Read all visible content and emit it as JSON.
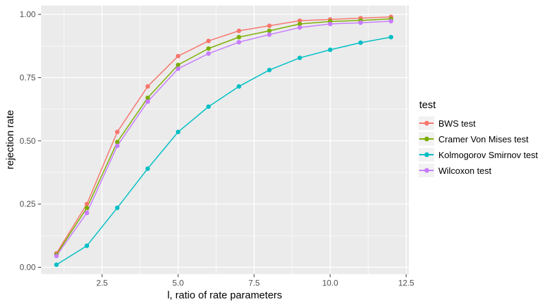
{
  "chart_data": {
    "type": "line",
    "title": "",
    "xlabel": "l, ratio of rate parameters",
    "ylabel": "rejection rate",
    "x": [
      1,
      2,
      3,
      4,
      5,
      6,
      7,
      8,
      9,
      10,
      11,
      12
    ],
    "xlim": [
      0.5,
      12.6
    ],
    "ylim": [
      -0.03,
      1.03
    ],
    "xticks": {
      "values": [
        2.5,
        5.0,
        7.5,
        10.0,
        12.5
      ],
      "labels": [
        "2.5",
        "5.0",
        "7.5",
        "10.0",
        "12.5"
      ]
    },
    "yticks": {
      "values": [
        0.0,
        0.25,
        0.5,
        0.75,
        1.0
      ],
      "labels": [
        "0.00",
        "0.25",
        "0.50",
        "0.75",
        "1.00"
      ]
    },
    "minor_xticks": [
      1.25,
      3.75,
      6.25,
      8.75,
      11.25
    ],
    "minor_yticks": [
      0.125,
      0.375,
      0.625,
      0.875
    ],
    "grid": "on",
    "panel_bg": "#EBEBEB",
    "grid_color": "#FFFFFF",
    "axis_text_color": "#4D4D4D",
    "tick_mark_color": "#333333",
    "legend": {
      "title": "test",
      "position": "right",
      "key_bg": "#F2F2F2"
    },
    "series": [
      {
        "name": "BWS test",
        "color": "#F8766D",
        "values": [
          0.055,
          0.25,
          0.535,
          0.715,
          0.835,
          0.895,
          0.935,
          0.955,
          0.975,
          0.98,
          0.985,
          0.99
        ]
      },
      {
        "name": "Cramer Von Mises test",
        "color": "#7CAE00",
        "values": [
          0.05,
          0.235,
          0.495,
          0.67,
          0.8,
          0.865,
          0.91,
          0.935,
          0.962,
          0.972,
          0.976,
          0.982
        ]
      },
      {
        "name": "Kolmogorov Smirnov test",
        "color": "#00BFC4",
        "values": [
          0.01,
          0.085,
          0.235,
          0.39,
          0.535,
          0.635,
          0.715,
          0.78,
          0.828,
          0.86,
          0.888,
          0.91
        ]
      },
      {
        "name": "Wilcoxon test",
        "color": "#C77CFF",
        "values": [
          0.045,
          0.215,
          0.48,
          0.655,
          0.785,
          0.845,
          0.89,
          0.92,
          0.948,
          0.962,
          0.967,
          0.973
        ]
      }
    ]
  }
}
